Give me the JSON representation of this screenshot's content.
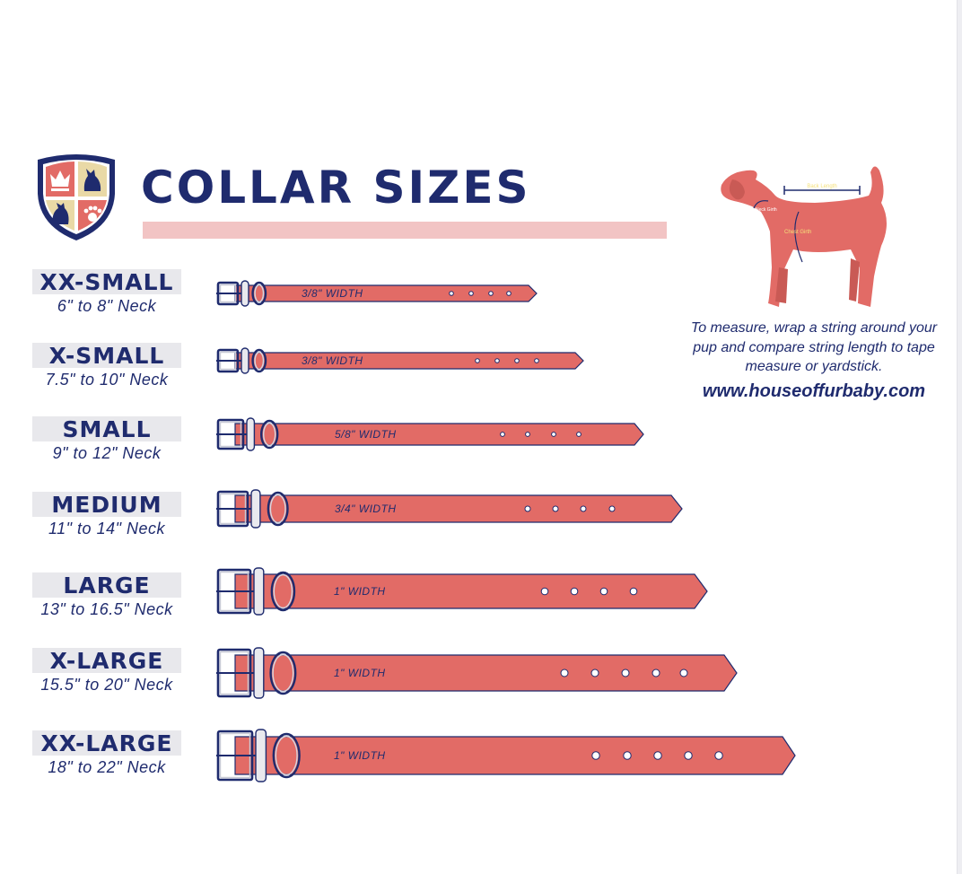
{
  "title": "COLLAR SIZES",
  "sizes": [
    {
      "name": "XX-SMALL",
      "neck": "6\" to 8\" Neck",
      "width_label": "3/8\" WIDTH",
      "holes": 4
    },
    {
      "name": "X-SMALL",
      "neck": "7.5\" to 10\" Neck",
      "width_label": "3/8\" WIDTH",
      "holes": 4
    },
    {
      "name": "SMALL",
      "neck": "9\" to 12\" Neck",
      "width_label": "5/8\" WIDTH",
      "holes": 4
    },
    {
      "name": "MEDIUM",
      "neck": "11\" to 14\" Neck",
      "width_label": "3/4\" WIDTH",
      "holes": 4
    },
    {
      "name": "LARGE",
      "neck": "13\" to 16.5\" Neck",
      "width_label": "1\" WIDTH",
      "holes": 4
    },
    {
      "name": "X-LARGE",
      "neck": "15.5\" to 20\" Neck",
      "width_label": "1\" WIDTH",
      "holes": 5
    },
    {
      "name": "XX-LARGE",
      "neck": "18\" to 22\" Neck",
      "width_label": "1\" WIDTH",
      "holes": 5
    }
  ],
  "dog_diagram": {
    "back_length": "Back Length",
    "neck_girth": "Neck Girth",
    "chest_girth": "Chest Girth"
  },
  "instructions": "To measure, wrap a string around your pup and compare string length to tape measure or yardstick.",
  "website": "www.houseoffurbaby.com",
  "colors": {
    "navy": "#1f2b6e",
    "collar": "#e26b66",
    "accent_bar": "#f2c4c4",
    "label_bg": "#e8e8ec",
    "crest_gold": "#e9d9a6"
  }
}
